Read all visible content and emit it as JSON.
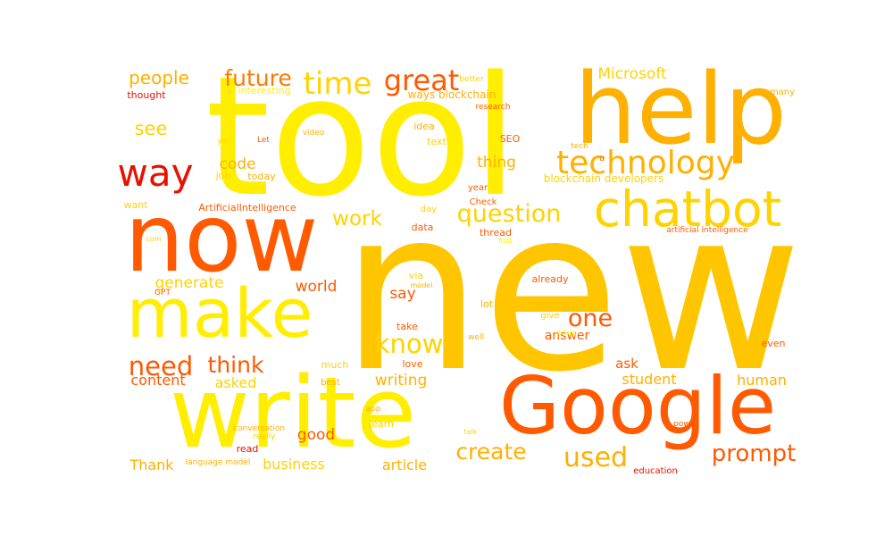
{
  "palette": {
    "yellow": "#ffee00",
    "gold": "#ffd200",
    "amber": "#ffb000",
    "orange": "#ff9000",
    "deep_orange": "#ff5a00",
    "red": "#e81000"
  },
  "words": [
    {
      "id": "new",
      "text": "new",
      "color": "#ffc600"
    },
    {
      "id": "tool",
      "text": "tool",
      "color": "#ffee00"
    },
    {
      "id": "write",
      "text": "write",
      "color": "#ffee00"
    },
    {
      "id": "now",
      "text": "now",
      "color": "#ff5a00"
    },
    {
      "id": "help",
      "text": "help",
      "color": "#ffb000"
    },
    {
      "id": "google",
      "text": "Google",
      "color": "#ff5a00"
    },
    {
      "id": "make",
      "text": "make",
      "color": "#ffee00"
    },
    {
      "id": "chatbot",
      "text": "chatbot",
      "color": "#ffd200"
    },
    {
      "id": "way",
      "text": "way",
      "color": "#e81000"
    },
    {
      "id": "technology",
      "text": "technology",
      "color": "#ffb000"
    },
    {
      "id": "time",
      "text": "time",
      "color": "#ffd200"
    },
    {
      "id": "great",
      "text": "great",
      "color": "#ff5a00"
    },
    {
      "id": "future",
      "text": "future",
      "color": "#ff7a00"
    },
    {
      "id": "question",
      "text": "question",
      "color": "#ffd200"
    },
    {
      "id": "need",
      "text": "need",
      "color": "#ff5a00"
    },
    {
      "id": "know",
      "text": "know",
      "color": "#ffd200"
    },
    {
      "id": "one",
      "text": "one",
      "color": "#ff5a00"
    },
    {
      "id": "used",
      "text": "used",
      "color": "#ffb000"
    },
    {
      "id": "create",
      "text": "create",
      "color": "#ffb000"
    },
    {
      "id": "prompt",
      "text": "prompt",
      "color": "#ff5a00"
    },
    {
      "id": "think",
      "text": "think",
      "color": "#ff5a00"
    },
    {
      "id": "work",
      "text": "work",
      "color": "#ffd200"
    },
    {
      "id": "people",
      "text": "people",
      "color": "#ffb000"
    },
    {
      "id": "see",
      "text": "see",
      "color": "#ffd200"
    },
    {
      "id": "code",
      "text": "code",
      "color": "#ffb000"
    },
    {
      "id": "thing",
      "text": "thing",
      "color": "#ffb000"
    },
    {
      "id": "microsoft",
      "text": "Microsoft",
      "color": "#ffd200"
    },
    {
      "id": "world",
      "text": "world",
      "color": "#ff5a00"
    },
    {
      "id": "generate",
      "text": "generate",
      "color": "#ffd200"
    },
    {
      "id": "say",
      "text": "say",
      "color": "#ff5a00"
    },
    {
      "id": "writing",
      "text": "writing",
      "color": "#ffb000"
    },
    {
      "id": "content",
      "text": "content",
      "color": "#ff5a00"
    },
    {
      "id": "asked",
      "text": "asked",
      "color": "#ffd200"
    },
    {
      "id": "good",
      "text": "good",
      "color": "#ff5a00"
    },
    {
      "id": "business",
      "text": "business",
      "color": "#ffd200"
    },
    {
      "id": "article",
      "text": "article",
      "color": "#ffb000"
    },
    {
      "id": "thank",
      "text": "Thank",
      "color": "#ffb000"
    },
    {
      "id": "student",
      "text": "student",
      "color": "#ffb000"
    },
    {
      "id": "human",
      "text": "human",
      "color": "#ffb000"
    },
    {
      "id": "ask",
      "text": "ask",
      "color": "#ff5a00"
    },
    {
      "id": "answer",
      "text": "answer",
      "color": "#ff5a00"
    },
    {
      "id": "ways-blockchain",
      "text": "ways blockchain",
      "color": "#ffb000"
    },
    {
      "id": "blockchain-developers",
      "text": "blockchain developers",
      "color": "#ffd200"
    },
    {
      "id": "thought",
      "text": "thought",
      "color": "#e81000"
    },
    {
      "id": "interesting",
      "text": "interesting",
      "color": "#ffee00"
    },
    {
      "id": "today",
      "text": "today",
      "color": "#ffb000"
    },
    {
      "id": "job",
      "text": "job",
      "color": "#ffd200"
    },
    {
      "id": "artificialintelligence",
      "text": "ArtificialIntelligence",
      "color": "#ff5a00"
    },
    {
      "id": "want",
      "text": "want",
      "color": "#ffd200"
    },
    {
      "id": "text",
      "text": "text",
      "color": "#ffd200"
    },
    {
      "id": "idea",
      "text": "idea",
      "color": "#ffb000"
    },
    {
      "id": "video",
      "text": "video",
      "color": "#ffb000"
    },
    {
      "id": "let",
      "text": "Let",
      "color": "#ff5a00"
    },
    {
      "id": "ye",
      "text": "ye",
      "color": "#ffd200"
    },
    {
      "id": "research",
      "text": "research",
      "color": "#ff5a00"
    },
    {
      "id": "better",
      "text": "better",
      "color": "#ffd200"
    },
    {
      "id": "seo",
      "text": "SEO",
      "color": "#ff5a00"
    },
    {
      "id": "tech",
      "text": "tech",
      "color": "#ffb000"
    },
    {
      "id": "year",
      "text": "year",
      "color": "#ff5a00"
    },
    {
      "id": "day",
      "text": "day",
      "color": "#ffd200"
    },
    {
      "id": "data",
      "text": "data",
      "color": "#ff5a00"
    },
    {
      "id": "thread",
      "text": "thread",
      "color": "#ff5a00"
    },
    {
      "id": "check",
      "text": "Check",
      "color": "#ff5a00"
    },
    {
      "id": "first",
      "text": "first",
      "color": "#ffee00"
    },
    {
      "id": "artificial-intelligence",
      "text": "artificial intelligence",
      "color": "#ff5a00"
    },
    {
      "id": "many",
      "text": "many",
      "color": "#ffb000"
    },
    {
      "id": "com",
      "text": "com",
      "color": "#ffd200"
    },
    {
      "id": "gpt",
      "text": "GPT",
      "color": "#ff5a00"
    },
    {
      "id": "via",
      "text": "via",
      "color": "#ffd200"
    },
    {
      "id": "model",
      "text": "model",
      "color": "#ffb000"
    },
    {
      "id": "lot",
      "text": "lot",
      "color": "#ffb000"
    },
    {
      "id": "already",
      "text": "already",
      "color": "#ff5a00"
    },
    {
      "id": "give",
      "text": "give",
      "color": "#ffd200"
    },
    {
      "id": "going",
      "text": "going",
      "color": "#ffee00"
    },
    {
      "id": "take",
      "text": "take",
      "color": "#ff5a00"
    },
    {
      "id": "well",
      "text": "well",
      "color": "#ffb000"
    },
    {
      "id": "much",
      "text": "much",
      "color": "#ffd200"
    },
    {
      "id": "love",
      "text": "love",
      "color": "#ff5a00"
    },
    {
      "id": "best",
      "text": "best",
      "color": "#ffb000"
    },
    {
      "id": "even",
      "text": "even",
      "color": "#ff5a00"
    },
    {
      "id": "app",
      "text": "app",
      "color": "#ffb000"
    },
    {
      "id": "learn",
      "text": "learn",
      "color": "#ffd200"
    },
    {
      "id": "conversation",
      "text": "conversation",
      "color": "#ffb000"
    },
    {
      "id": "really",
      "text": "really",
      "color": "#ffd200"
    },
    {
      "id": "talk",
      "text": "talk",
      "color": "#ffd200"
    },
    {
      "id": "power",
      "text": "power",
      "color": "#ff5a00"
    },
    {
      "id": "read",
      "text": "read",
      "color": "#e81000"
    },
    {
      "id": "language-model",
      "text": "language model",
      "color": "#ffb000"
    },
    {
      "id": "education",
      "text": "education",
      "color": "#e81000"
    },
    {
      "id": "u",
      "text": "u",
      "color": "#ff5a00"
    }
  ]
}
